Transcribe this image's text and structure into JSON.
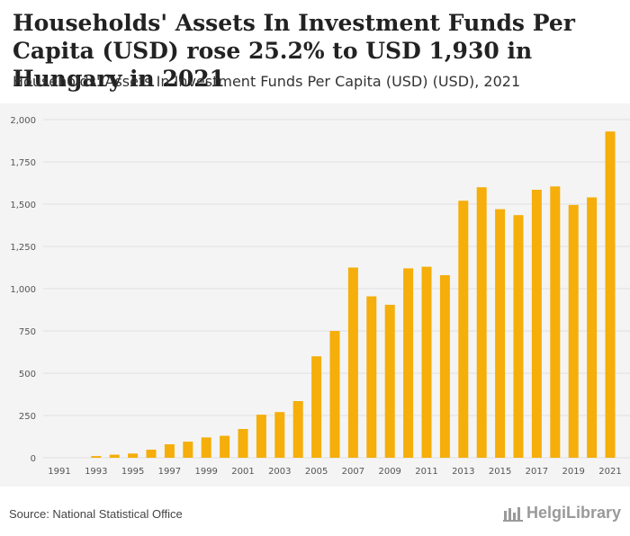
{
  "header": {
    "title": "Households' Assets In Investment Funds Per Capita (USD) rose 25.2% to USD 1,930 in Hungary in 2021",
    "subtitle": "Households' Assets In Investment Funds Per Capita (USD) (USD), 2021"
  },
  "footer": {
    "source": "Source: National Statistical Office",
    "brand": "HelgiLibrary"
  },
  "colors": {
    "bar": "#f5ae0a",
    "grid": "#e0e0e0",
    "plot_background": "#f4f4f4"
  },
  "chart_data": {
    "type": "bar",
    "title": "Households' Assets In Investment Funds Per Capita (USD) (USD), 2021",
    "xlabel": "",
    "ylabel": "",
    "ylim": [
      0,
      2000
    ],
    "yticks": [
      0,
      250,
      500,
      750,
      1000,
      1250,
      1500,
      1750,
      2000
    ],
    "ytick_labels": [
      "0",
      "250",
      "500",
      "750",
      "1,000",
      "1,250",
      "1,500",
      "1,750",
      "2,000"
    ],
    "xtick_labels": [
      "1991",
      "1993",
      "1995",
      "1997",
      "1999",
      "2001",
      "2003",
      "2005",
      "2007",
      "2009",
      "2011",
      "2013",
      "2015",
      "2017",
      "2019",
      "2021"
    ],
    "categories": [
      "1991",
      "1992",
      "1993",
      "1994",
      "1995",
      "1996",
      "1997",
      "1998",
      "1999",
      "2000",
      "2001",
      "2002",
      "2003",
      "2004",
      "2005",
      "2006",
      "2007",
      "2008",
      "2009",
      "2010",
      "2011",
      "2012",
      "2013",
      "2014",
      "2015",
      "2016",
      "2017",
      "2018",
      "2019",
      "2020",
      "2021"
    ],
    "values": [
      0,
      0,
      10,
      18,
      25,
      48,
      80,
      95,
      120,
      130,
      170,
      255,
      270,
      335,
      600,
      750,
      1125,
      955,
      905,
      1120,
      1130,
      1080,
      1520,
      1600,
      1470,
      1435,
      1585,
      1605,
      1495,
      1540,
      1930
    ],
    "grid": true
  }
}
